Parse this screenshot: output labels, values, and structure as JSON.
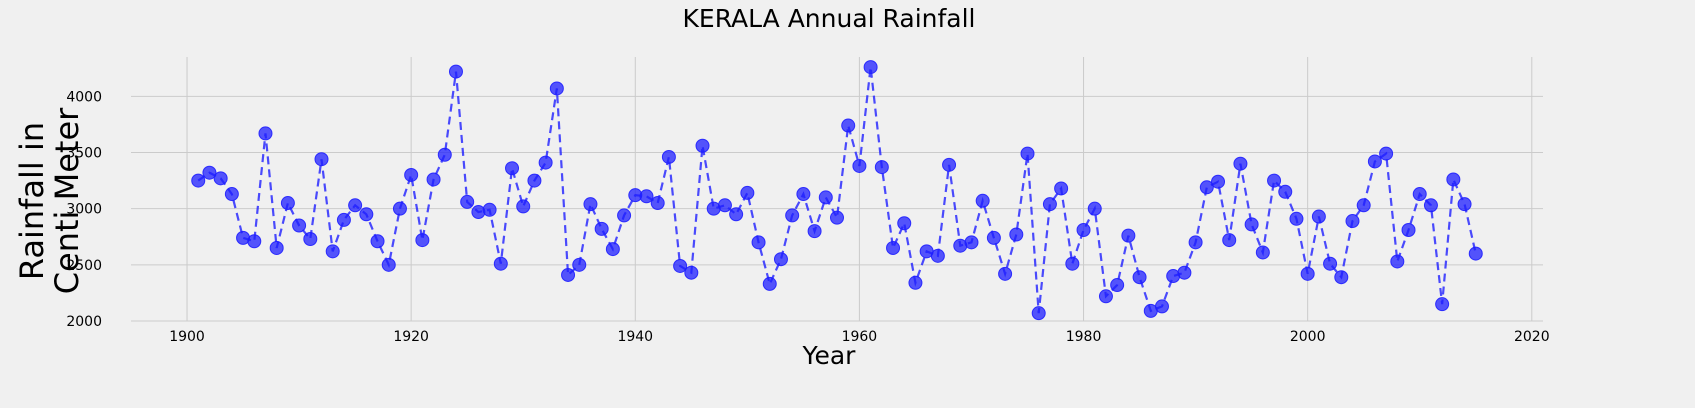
{
  "chart_data": {
    "type": "line",
    "title": "KERALA Annual Rainfall",
    "xlabel": "Year",
    "ylabel": [
      "Rainfall in",
      "Centi Meter"
    ],
    "xlim": [
      1895,
      2021
    ],
    "ylim": [
      2000,
      4350
    ],
    "x_ticks": [
      1900,
      1920,
      1940,
      1960,
      1980,
      2000,
      2020
    ],
    "y_ticks": [
      2000,
      2500,
      3000,
      3500,
      4000
    ],
    "grid": true,
    "legend": "none",
    "line_style": "dashed",
    "marker": "circle",
    "colors": {
      "series": "#1f1fff",
      "background": "#f0f0f0",
      "grid": "#cbcbcb"
    },
    "series": [
      {
        "x": [
          1901,
          1902,
          1903,
          1904,
          1905,
          1906,
          1907,
          1908,
          1909,
          1910,
          1911,
          1912,
          1913,
          1914,
          1915,
          1916,
          1917,
          1918,
          1919,
          1920,
          1921,
          1922,
          1923,
          1924,
          1925,
          1926,
          1927,
          1928,
          1929,
          1930,
          1931,
          1932,
          1933,
          1934,
          1935,
          1936,
          1937,
          1938,
          1939,
          1940,
          1941,
          1942,
          1943,
          1944,
          1945,
          1946,
          1947,
          1948,
          1949,
          1950,
          1951,
          1952,
          1953,
          1954,
          1955,
          1956,
          1957,
          1958,
          1959,
          1960,
          1961,
          1962,
          1963,
          1964,
          1965,
          1966,
          1967,
          1968,
          1969,
          1970,
          1971,
          1972,
          1973,
          1974,
          1975,
          1976,
          1977,
          1978,
          1979,
          1980,
          1981,
          1982,
          1983,
          1984,
          1985,
          1986,
          1987,
          1988,
          1989,
          1990,
          1991,
          1992,
          1993,
          1994,
          1995,
          1996,
          1997,
          1998,
          1999,
          2000,
          2001,
          2002,
          2003,
          2004,
          2005,
          2006,
          2007,
          2008,
          2009,
          2010,
          2011,
          2012,
          2013,
          2014,
          2015
        ],
        "y": [
          3250,
          3320,
          3270,
          3130,
          2740,
          2710,
          3670,
          2650,
          3050,
          2850,
          2730,
          3440,
          2620,
          2900,
          3030,
          2950,
          2710,
          2500,
          3000,
          3300,
          2720,
          3260,
          3480,
          4220,
          3060,
          2970,
          2990,
          2510,
          3360,
          3020,
          3250,
          3410,
          4070,
          2410,
          2500,
          3040,
          2820,
          2640,
          2940,
          3120,
          3110,
          3050,
          3460,
          2490,
          2430,
          3560,
          3000,
          3030,
          2950,
          3140,
          2700,
          2330,
          2550,
          2940,
          3130,
          2800,
          3100,
          2920,
          3740,
          3380,
          4260,
          3370,
          2650,
          2870,
          2340,
          2620,
          2580,
          3390,
          2670,
          2700,
          3070,
          2740,
          2420,
          2770,
          3490,
          2070,
          3040,
          3180,
          2510,
          2810,
          3000,
          2220,
          2320,
          2760,
          2390,
          2090,
          2130,
          2400,
          2430,
          2700,
          3190,
          3240,
          2720,
          3400,
          2860,
          2610,
          3250,
          3150,
          2910,
          2420,
          2930,
          2510,
          2390,
          2890,
          3030,
          3420,
          3490,
          2530,
          2810,
          3130,
          3030,
          2150,
          3260,
          3040,
          2600
        ]
      }
    ]
  }
}
